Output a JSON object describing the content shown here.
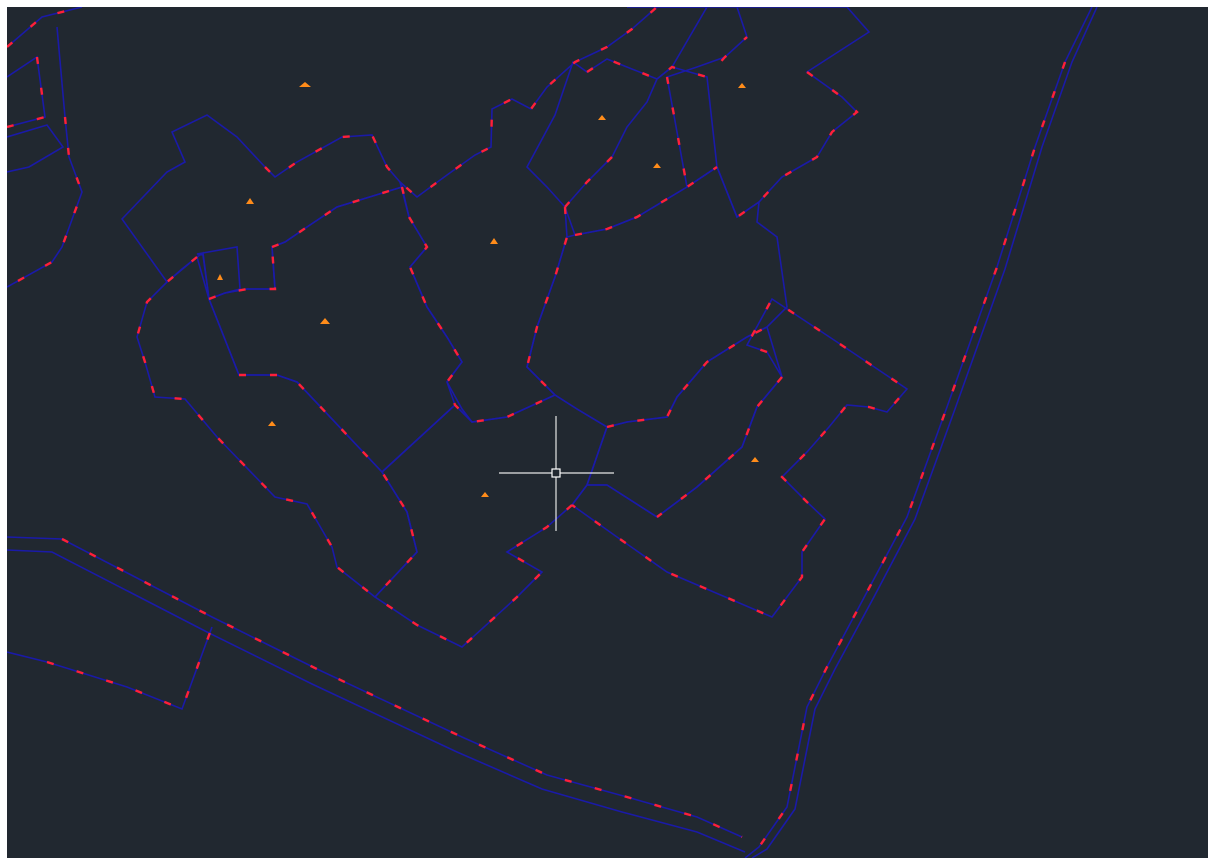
{
  "canvas": {
    "background_color": "#212830",
    "page_color": "#ffffff",
    "parcel_line_color": "#1a1aa8",
    "boundary_line_color": "#ff1f3a",
    "marker_color": "#ff8c1a",
    "cursor_color": "#e6e6e6",
    "cursor_icon": "crosshair-pickbox-icon",
    "marker_icon": "parcel-marker-icon"
  }
}
